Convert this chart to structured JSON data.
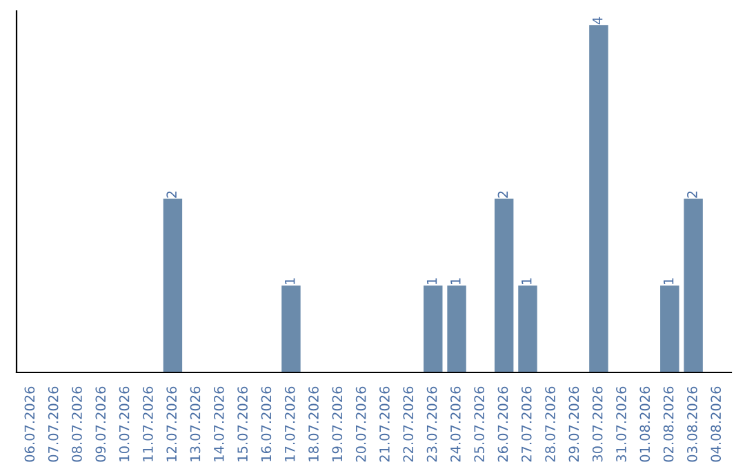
{
  "chart_data": {
    "type": "bar",
    "categories": [
      "06.07.2026",
      "07.07.2026",
      "08.07.2026",
      "09.07.2026",
      "10.07.2026",
      "11.07.2026",
      "12.07.2026",
      "13.07.2026",
      "14.07.2026",
      "15.07.2026",
      "16.07.2026",
      "17.07.2026",
      "18.07.2026",
      "19.07.2026",
      "20.07.2026",
      "21.07.2026",
      "22.07.2026",
      "23.07.2026",
      "24.07.2026",
      "25.07.2026",
      "26.07.2026",
      "27.07.2026",
      "28.07.2026",
      "29.07.2026",
      "30.07.2026",
      "31.07.2026",
      "01.08.2026",
      "02.08.2026",
      "03.08.2026",
      "04.08.2026"
    ],
    "values": [
      0,
      0,
      0,
      0,
      0,
      0,
      2,
      0,
      0,
      0,
      0,
      1,
      0,
      0,
      0,
      0,
      0,
      1,
      1,
      0,
      2,
      1,
      0,
      0,
      4,
      0,
      0,
      1,
      2,
      0
    ],
    "value_labels": [
      null,
      null,
      null,
      null,
      null,
      null,
      "2",
      null,
      null,
      null,
      null,
      "1",
      null,
      null,
      null,
      null,
      null,
      "1",
      "1",
      null,
      "2",
      "1",
      null,
      null,
      "4",
      null,
      null,
      "1",
      "2",
      null
    ],
    "color": "#6b8bab",
    "ylim": [
      0,
      4.16
    ],
    "tick_labels": "x",
    "grid": false,
    "legend": false
  }
}
